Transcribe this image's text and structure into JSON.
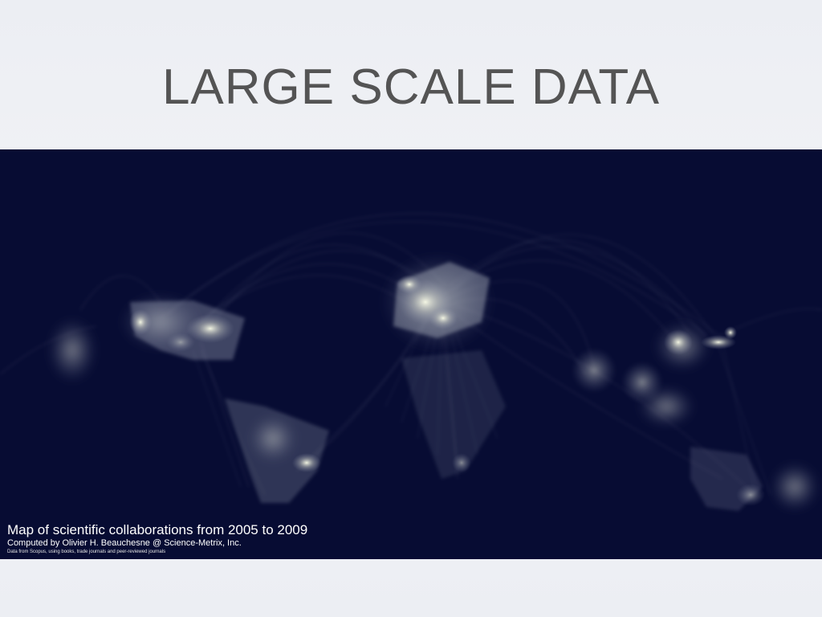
{
  "slide": {
    "title": "LARGE SCALE DATA"
  },
  "figure": {
    "caption_title": "Map of scientific collaborations from 2005 to 2009",
    "caption_credit": "Computed by Olivier H. Beauchesne @ Science-Metrix, Inc.",
    "caption_source": "Data from Scopus, using books, trade journals and peer-reviewed journals"
  },
  "colors": {
    "slide_background": "#eceef3",
    "title_text": "#545454",
    "map_background": "#070c33",
    "network_glow": "#f2f4dc"
  }
}
